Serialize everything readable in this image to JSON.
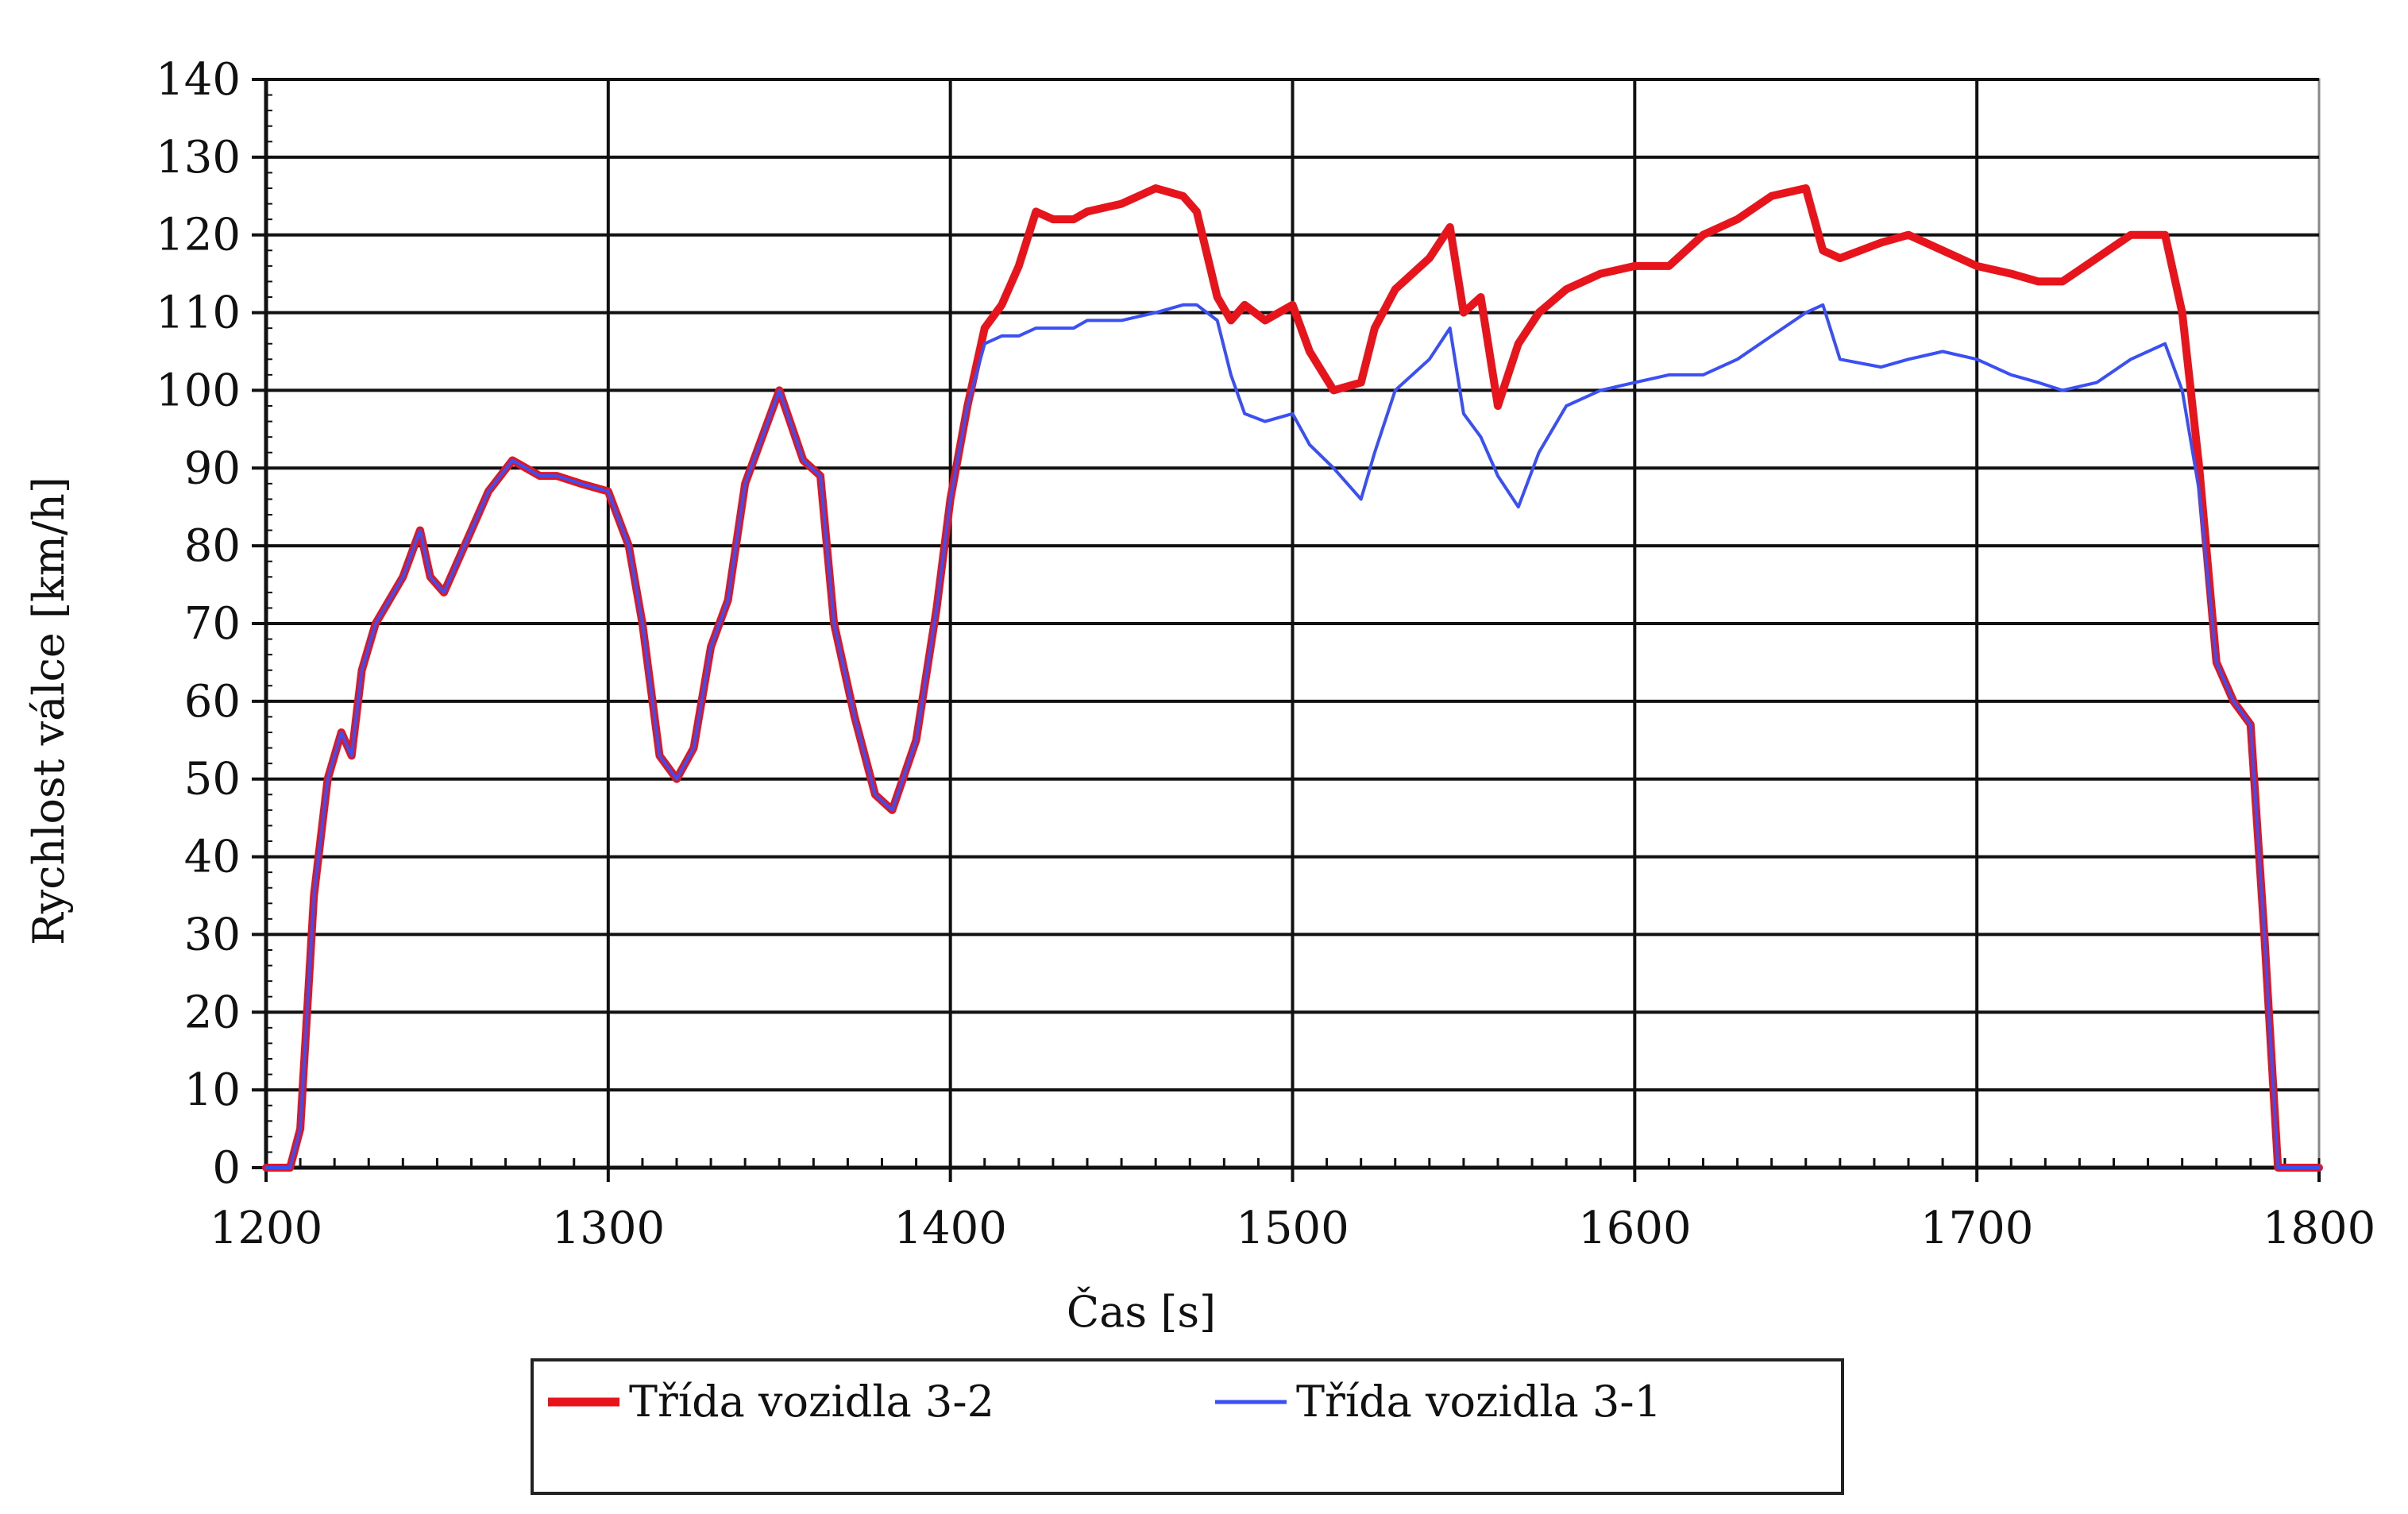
{
  "chart_data": {
    "type": "line",
    "title": "",
    "xlabel": "Čas [s]",
    "ylabel": "Rychlost válce [km/h]",
    "xlim": [
      1200,
      1800
    ],
    "ylim": [
      0,
      140
    ],
    "x_ticks": [
      1200,
      1300,
      1400,
      1500,
      1600,
      1700,
      1800
    ],
    "y_ticks": [
      0,
      10,
      20,
      30,
      40,
      50,
      60,
      70,
      80,
      90,
      100,
      110,
      120,
      130,
      140
    ],
    "grid": true,
    "legend_position": "bottom",
    "series": [
      {
        "name": "Třída vozidla 3-2",
        "color": "#e8141c",
        "x": [
          1200,
          1207,
          1210,
          1214,
          1218,
          1222,
          1225,
          1228,
          1232,
          1240,
          1245,
          1248,
          1252,
          1260,
          1265,
          1272,
          1280,
          1285,
          1292,
          1300,
          1306,
          1310,
          1315,
          1320,
          1325,
          1330,
          1335,
          1340,
          1345,
          1350,
          1357,
          1362,
          1366,
          1372,
          1378,
          1383,
          1390,
          1396,
          1400,
          1405,
          1410,
          1415,
          1420,
          1425,
          1430,
          1436,
          1440,
          1450,
          1460,
          1468,
          1472,
          1478,
          1482,
          1486,
          1492,
          1500,
          1505,
          1512,
          1520,
          1524,
          1530,
          1540,
          1546,
          1550,
          1555,
          1560,
          1566,
          1572,
          1580,
          1590,
          1600,
          1610,
          1620,
          1630,
          1640,
          1650,
          1655,
          1660,
          1672,
          1680,
          1690,
          1700,
          1710,
          1718,
          1725,
          1735,
          1745,
          1755,
          1760,
          1765,
          1770,
          1775,
          1780,
          1784,
          1788,
          1792,
          1800
        ],
        "values": [
          0,
          0,
          5,
          35,
          50,
          56,
          53,
          64,
          70,
          76,
          82,
          76,
          74,
          82,
          87,
          91,
          89,
          89,
          88,
          87,
          80,
          70,
          53,
          50,
          54,
          67,
          73,
          88,
          94,
          100,
          91,
          89,
          70,
          58,
          48,
          46,
          55,
          72,
          86,
          98,
          108,
          111,
          116,
          123,
          122,
          122,
          123,
          124,
          126,
          125,
          123,
          112,
          109,
          111,
          109,
          111,
          105,
          100,
          101,
          108,
          113,
          117,
          121,
          110,
          112,
          98,
          106,
          110,
          113,
          115,
          116,
          116,
          120,
          122,
          125,
          126,
          118,
          117,
          119,
          120,
          118,
          116,
          115,
          114,
          114,
          117,
          120,
          120,
          110,
          90,
          65,
          60,
          57,
          30,
          0,
          0,
          0
        ]
      },
      {
        "name": "Třída vozidla 3-1",
        "color": "#3a4ff5",
        "x": [
          1200,
          1207,
          1210,
          1214,
          1218,
          1222,
          1225,
          1228,
          1232,
          1240,
          1245,
          1248,
          1252,
          1260,
          1265,
          1272,
          1280,
          1285,
          1292,
          1300,
          1306,
          1310,
          1315,
          1320,
          1325,
          1330,
          1335,
          1340,
          1345,
          1350,
          1357,
          1362,
          1366,
          1372,
          1378,
          1383,
          1390,
          1396,
          1400,
          1405,
          1410,
          1415,
          1420,
          1425,
          1430,
          1436,
          1440,
          1450,
          1460,
          1468,
          1472,
          1478,
          1482,
          1486,
          1492,
          1500,
          1505,
          1512,
          1520,
          1524,
          1530,
          1540,
          1546,
          1550,
          1555,
          1560,
          1566,
          1572,
          1580,
          1590,
          1600,
          1610,
          1620,
          1630,
          1640,
          1650,
          1655,
          1660,
          1672,
          1680,
          1690,
          1700,
          1710,
          1718,
          1725,
          1735,
          1745,
          1755,
          1760,
          1765,
          1770,
          1775,
          1780,
          1784,
          1788,
          1792,
          1800
        ],
        "values": [
          0,
          0,
          5,
          35,
          50,
          56,
          53,
          64,
          70,
          76,
          82,
          76,
          74,
          82,
          87,
          91,
          89,
          89,
          88,
          87,
          80,
          70,
          53,
          50,
          54,
          67,
          73,
          88,
          94,
          100,
          91,
          89,
          70,
          58,
          48,
          46,
          55,
          72,
          86,
          98,
          106,
          107,
          107,
          108,
          108,
          108,
          109,
          109,
          110,
          111,
          111,
          109,
          102,
          97,
          96,
          97,
          93,
          90,
          86,
          92,
          100,
          104,
          108,
          97,
          94,
          89,
          85,
          92,
          98,
          100,
          101,
          102,
          102,
          104,
          107,
          110,
          111,
          104,
          103,
          104,
          105,
          104,
          102,
          101,
          100,
          101,
          104,
          106,
          100,
          87,
          65,
          60,
          57,
          30,
          0,
          0,
          0
        ]
      }
    ]
  }
}
